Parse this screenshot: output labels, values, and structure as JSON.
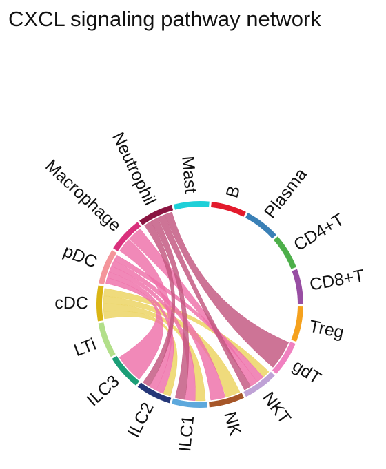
{
  "chart_data": {
    "type": "chord",
    "title": "CXCL signaling pathway network",
    "sectors": [
      {
        "name": "cDC",
        "color": "#DAB514"
      },
      {
        "name": "pDC",
        "color": "#F4959B"
      },
      {
        "name": "Macrophage",
        "color": "#D9307C"
      },
      {
        "name": "Neutrophil",
        "color": "#8A1541"
      },
      {
        "name": "Mast",
        "color": "#1ED0D8"
      },
      {
        "name": "B",
        "color": "#E31A2C"
      },
      {
        "name": "Plasma",
        "color": "#3A80B6"
      },
      {
        "name": "CD4+T",
        "color": "#4DAF4A"
      },
      {
        "name": "CD8+T",
        "color": "#984EA3"
      },
      {
        "name": "Treg",
        "color": "#F5A11D"
      },
      {
        "name": "gdT",
        "color": "#F081C0"
      },
      {
        "name": "NKT",
        "color": "#BFA2D6"
      },
      {
        "name": "NK",
        "color": "#A65628"
      },
      {
        "name": "ILC1",
        "color": "#5DA8DC"
      },
      {
        "name": "ILC2",
        "color": "#253778"
      },
      {
        "name": "ILC3",
        "color": "#1B9E77"
      },
      {
        "name": "LTi",
        "color": "#B2DF8A"
      }
    ],
    "links": [
      {
        "source": "cDC",
        "target": "ILC2",
        "value": 1,
        "color": "#EBD35F"
      },
      {
        "source": "cDC",
        "target": "ILC1",
        "value": 1,
        "color": "#EBD35F"
      },
      {
        "source": "cDC",
        "target": "NK",
        "value": 1,
        "color": "#EBD35F"
      },
      {
        "source": "cDC",
        "target": "NKT",
        "value": 1,
        "color": "#EBD35F"
      },
      {
        "source": "pDC",
        "target": "ILC3",
        "value": 1,
        "color": "#EE6FA8"
      },
      {
        "source": "pDC",
        "target": "ILC2",
        "value": 1,
        "color": "#EE6FA8"
      },
      {
        "source": "pDC",
        "target": "ILC1",
        "value": 1,
        "color": "#EE6FA8"
      },
      {
        "source": "pDC",
        "target": "NK",
        "value": 1,
        "color": "#EE6FA8"
      },
      {
        "source": "pDC",
        "target": "NKT",
        "value": 1,
        "color": "#EE6FA8"
      },
      {
        "source": "Macrophage",
        "target": "ILC2",
        "value": 1,
        "color": "#EE6FA8"
      },
      {
        "source": "Macrophage",
        "target": "NKT",
        "value": 1,
        "color": "#EE6FA8"
      },
      {
        "source": "Neutrophil",
        "target": "ILC2",
        "value": 1,
        "color": "#C2557F"
      },
      {
        "source": "Neutrophil",
        "target": "ILC1",
        "value": 1,
        "color": "#C2557F"
      },
      {
        "source": "Neutrophil",
        "target": "NKT",
        "value": 1,
        "color": "#C2557F"
      },
      {
        "source": "Neutrophil",
        "target": "gdT",
        "value": 1,
        "color": "#C2557F"
      }
    ]
  }
}
